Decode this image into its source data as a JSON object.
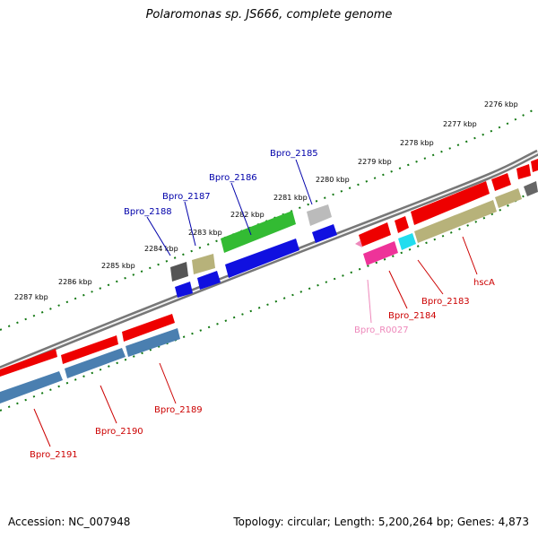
{
  "title": "Polaromonas sp. JS666, complete genome",
  "footer": {
    "accession": "Accession: NC_007948",
    "summary": "Topology: circular; Length: 5,200,264 bp; Genes: 4,873"
  },
  "colors": {
    "forward_gene": "#ee0000",
    "reverse_gene": "#1010e0",
    "cds_steelblue": "#4a7fb0",
    "cds_khaki": "#b7b27a",
    "green_gene": "#33bb33",
    "gray_gene": "#bbbbbb",
    "darkgray_gene": "#666666",
    "magenta_gene": "#ee3399",
    "cyan_gene": "#22ddee",
    "label_red": "#cc0000",
    "label_blue": "#0000aa",
    "label_pink": "#ee88bb",
    "tick_green": "#116611"
  },
  "kbp_labels": [
    "2276 kbp",
    "2277 kbp",
    "2278 kbp",
    "2279 kbp",
    "2280 kbp",
    "2281 kbp",
    "2282 kbp",
    "2283 kbp",
    "2284 kbp",
    "2285 kbp",
    "2286 kbp",
    "2287 kbp"
  ],
  "gene_labels": [
    {
      "text": "Bpro_2185",
      "color": "blue"
    },
    {
      "text": "Bpro_2186",
      "color": "blue"
    },
    {
      "text": "Bpro_2187",
      "color": "blue"
    },
    {
      "text": "Bpro_2188",
      "color": "blue"
    },
    {
      "text": "hscA",
      "color": "red"
    },
    {
      "text": "Bpro_2183",
      "color": "red"
    },
    {
      "text": "Bpro_2184",
      "color": "red"
    },
    {
      "text": "Bpro_R0027",
      "color": "pink"
    },
    {
      "text": "Bpro_2189",
      "color": "red"
    },
    {
      "text": "Bpro_2190",
      "color": "red"
    },
    {
      "text": "Bpro_2191",
      "color": "red"
    }
  ]
}
